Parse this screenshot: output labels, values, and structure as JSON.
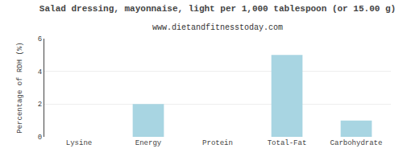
{
  "chart_data": {
    "type": "bar",
    "title": "Salad dressing, mayonnaise, light per 1,000 tablespoon (or 15.00 g)",
    "subtitle": "www.dietandfitnesstoday.com",
    "categories": [
      "Lysine",
      "Energy",
      "Protein",
      "Total-Fat",
      "Carbohydrate"
    ],
    "values": [
      0,
      2.0,
      0,
      5.0,
      1.0
    ],
    "color": "#a8d5e2",
    "ylabel": "Percentage of RDH (%)",
    "ylim": [
      0,
      6
    ],
    "yticks": [
      0,
      2,
      4,
      6
    ],
    "grid": true
  }
}
